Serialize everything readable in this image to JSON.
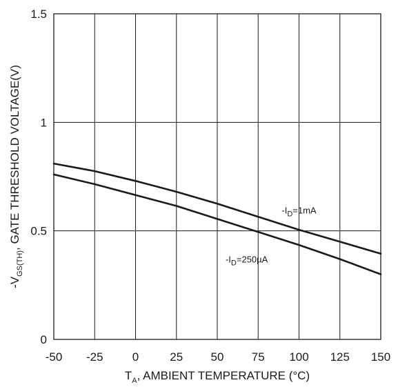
{
  "chart_data": {
    "type": "line",
    "title": "",
    "xlabel": {
      "main": "T",
      "sub": "A",
      "rest": ", AMBIENT TEMPERATURE (°C)"
    },
    "ylabel": {
      "pre": "-V",
      "sub": "GS(TH)",
      "rest": ",  GATE THRESHOLD VOLTAGE(V)"
    },
    "xlim": [
      -50,
      150
    ],
    "ylim": [
      0,
      1.5
    ],
    "xticks": [
      -50,
      -25,
      0,
      25,
      50,
      75,
      100,
      125,
      150
    ],
    "yticks": [
      0,
      0.5,
      1,
      1.5
    ],
    "xtick_labels": [
      "-50",
      "-25",
      "0",
      "25",
      "50",
      "75",
      "100",
      "125",
      "150"
    ],
    "ytick_labels": [
      "0",
      "0.5",
      "1",
      "1.5"
    ],
    "grid": {
      "vertical": true,
      "horizontal": true
    },
    "line_color": "#1a1a1a",
    "series": [
      {
        "name": "-ID=1mA",
        "label": {
          "pre": "-I",
          "sub": "D",
          "rest": "=1mA"
        },
        "label_at": [
          100,
          0.58
        ],
        "x": [
          -50,
          -25,
          0,
          25,
          50,
          75,
          100,
          125,
          150
        ],
        "y": [
          0.81,
          0.775,
          0.73,
          0.68,
          0.625,
          0.565,
          0.505,
          0.45,
          0.395
        ]
      },
      {
        "name": "-ID=250µA",
        "label": {
          "pre": "-I",
          "sub": "D",
          "rest": "=250µA"
        },
        "label_at": [
          68,
          0.355
        ],
        "x": [
          -50,
          -25,
          0,
          25,
          50,
          75,
          100,
          125,
          150
        ],
        "y": [
          0.76,
          0.715,
          0.665,
          0.615,
          0.555,
          0.495,
          0.435,
          0.37,
          0.3
        ]
      }
    ]
  }
}
